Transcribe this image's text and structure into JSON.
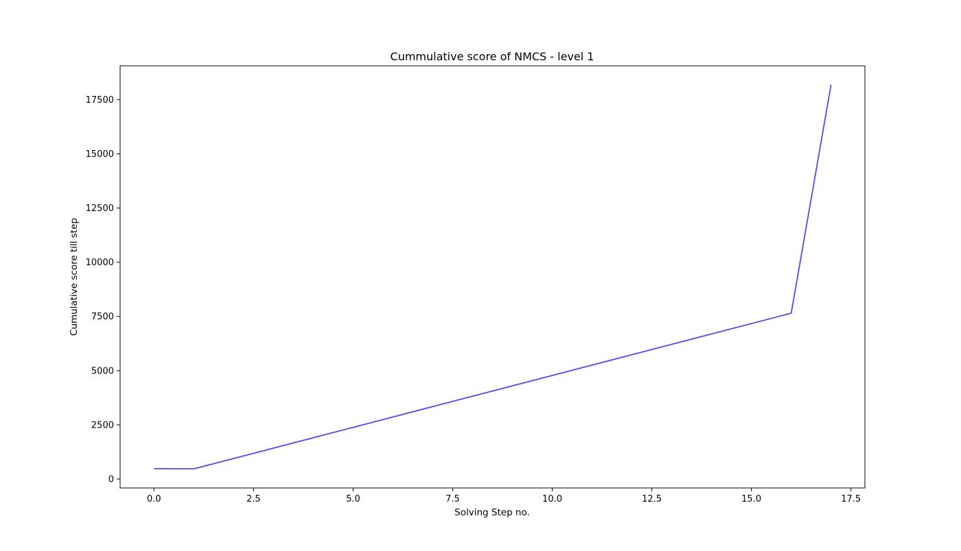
{
  "chart_data": {
    "type": "line",
    "title": "Cummulative score of NMCS - level 1",
    "xlabel": "Solving Step no.",
    "ylabel": "Cumulative score till step",
    "xlim": [
      -0.85,
      17.85
    ],
    "ylim": [
      -410,
      19060
    ],
    "xticks": [
      0.0,
      2.5,
      5.0,
      7.5,
      10.0,
      12.5,
      15.0,
      17.5
    ],
    "xtick_labels": [
      "0.0",
      "2.5",
      "5.0",
      "7.5",
      "10.0",
      "12.5",
      "15.0",
      "17.5"
    ],
    "yticks": [
      0,
      2500,
      5000,
      7500,
      10000,
      12500,
      15000,
      17500
    ],
    "ytick_labels": [
      "0",
      "2500",
      "5000",
      "7500",
      "10000",
      "12500",
      "15000",
      "17500"
    ],
    "grid": false,
    "series": [
      {
        "color": "#4a4af0",
        "x": [
          0,
          1,
          16,
          17
        ],
        "y": [
          480,
          470,
          7650,
          18180
        ]
      }
    ]
  }
}
